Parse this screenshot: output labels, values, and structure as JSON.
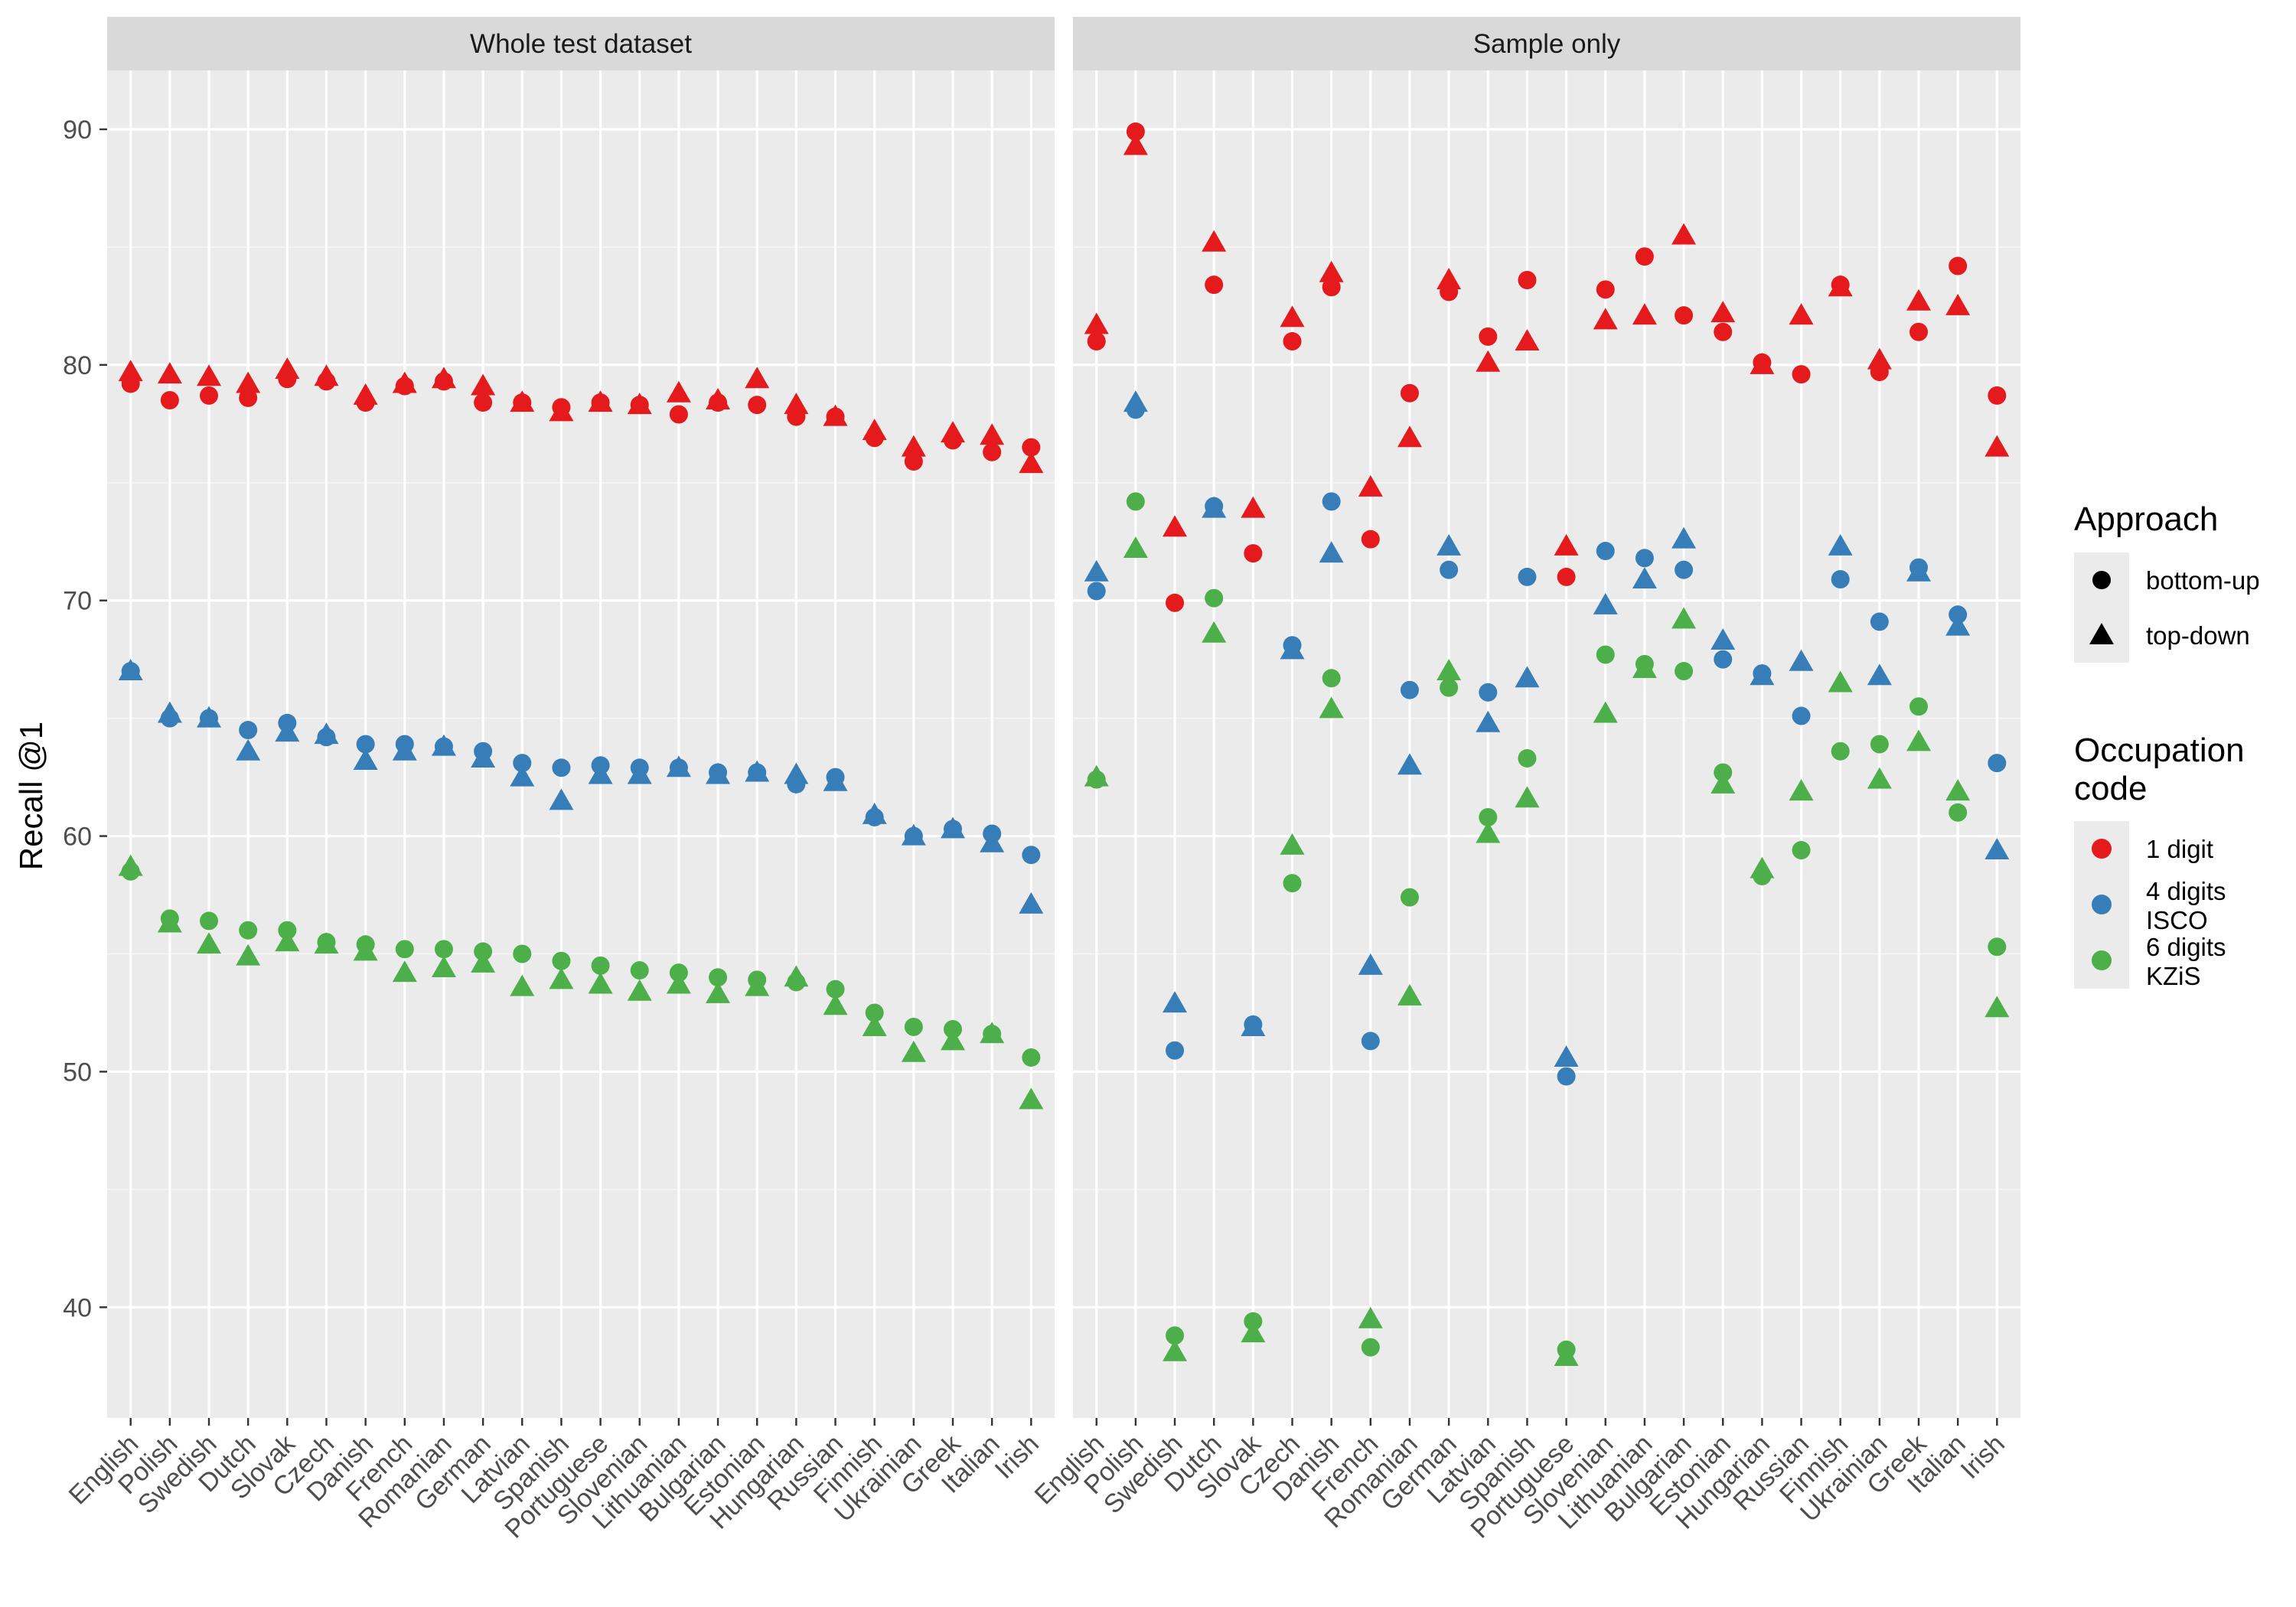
{
  "chart_data": {
    "type": "scatter",
    "ylabel": "Recall @1",
    "ylim": [
      35.3,
      92.5
    ],
    "yticks": [
      40,
      50,
      60,
      70,
      80,
      90
    ],
    "grid": true,
    "legend_position": "right",
    "colors": {
      "1 digit": "#e41a1c",
      "4 digits ISCO": "#377eb8",
      "6 digits KZiS": "#4daf4a"
    },
    "legend": {
      "approach": {
        "title": "Approach",
        "items": [
          "bottom-up",
          "top-down"
        ]
      },
      "occupation": {
        "title": [
          "Occupation",
          "code"
        ],
        "items": [
          [
            "1 digit"
          ],
          [
            "4 digits",
            "ISCO"
          ],
          [
            "6 digits",
            "KZiS"
          ]
        ]
      }
    },
    "panels": [
      {
        "title": "Whole test dataset",
        "categories": [
          "English",
          "Polish",
          "Swedish",
          "Dutch",
          "Slovak",
          "Czech",
          "Danish",
          "French",
          "Romanian",
          "German",
          "Latvian",
          "Spanish",
          "Portuguese",
          "Slovenian",
          "Lithuanian",
          "Bulgarian",
          "Estonian",
          "Hungarian",
          "Russian",
          "Finnish",
          "Ukrainian",
          "Greek",
          "Italian",
          "Irish"
        ],
        "series": [
          {
            "name": "bottom-up 1 digit",
            "approach": "bottom-up",
            "code": "1 digit",
            "values": [
              79.2,
              78.5,
              78.7,
              78.6,
              79.4,
              79.3,
              78.4,
              79.1,
              79.3,
              78.4,
              78.4,
              78.2,
              78.4,
              78.3,
              77.9,
              78.4,
              78.3,
              77.8,
              77.8,
              76.9,
              75.9,
              76.8,
              76.3,
              76.5
            ]
          },
          {
            "name": "top-down 1 digit",
            "approach": "top-down",
            "code": "1 digit",
            "values": [
              79.7,
              79.6,
              79.5,
              79.2,
              79.8,
              79.5,
              78.7,
              79.2,
              79.4,
              79.1,
              78.4,
              78.0,
              78.4,
              78.3,
              78.8,
              78.5,
              79.4,
              78.3,
              77.8,
              77.2,
              76.5,
              77.1,
              77.0,
              75.8
            ]
          },
          {
            "name": "bottom-up 4 digits ISCO",
            "approach": "bottom-up",
            "code": "4 digits ISCO",
            "values": [
              67.0,
              65.0,
              65.0,
              64.5,
              64.8,
              64.2,
              63.9,
              63.9,
              63.8,
              63.6,
              63.1,
              62.9,
              63.0,
              62.9,
              62.9,
              62.7,
              62.7,
              62.2,
              62.5,
              60.8,
              60.0,
              60.3,
              60.1,
              59.2
            ]
          },
          {
            "name": "top-down 4 digits ISCO",
            "approach": "top-down",
            "code": "4 digits ISCO",
            "values": [
              67.0,
              65.2,
              65.0,
              63.6,
              64.4,
              64.3,
              63.2,
              63.6,
              63.8,
              63.3,
              62.5,
              61.5,
              62.6,
              62.6,
              62.9,
              62.6,
              62.7,
              62.6,
              62.3,
              60.9,
              60.0,
              60.3,
              59.7,
              57.1
            ]
          },
          {
            "name": "bottom-up 6 digits KZiS",
            "approach": "bottom-up",
            "code": "6 digits KZiS",
            "values": [
              58.5,
              56.5,
              56.4,
              56.0,
              56.0,
              55.5,
              55.4,
              55.2,
              55.2,
              55.1,
              55.0,
              54.7,
              54.5,
              54.3,
              54.2,
              54.0,
              53.9,
              53.8,
              53.5,
              52.5,
              51.9,
              51.8,
              51.6,
              50.6
            ]
          },
          {
            "name": "top-down 6 digits KZiS",
            "approach": "top-down",
            "code": "6 digits KZiS",
            "values": [
              58.7,
              56.3,
              55.4,
              54.9,
              55.5,
              55.4,
              55.1,
              54.2,
              54.4,
              54.6,
              53.6,
              53.9,
              53.7,
              53.4,
              53.7,
              53.3,
              53.6,
              54.0,
              52.8,
              51.9,
              50.8,
              51.3,
              51.6,
              48.8
            ]
          }
        ]
      },
      {
        "title": "Sample only",
        "categories": [
          "English",
          "Polish",
          "Swedish",
          "Dutch",
          "Slovak",
          "Czech",
          "Danish",
          "French",
          "Romanian",
          "German",
          "Latvian",
          "Spanish",
          "Portuguese",
          "Slovenian",
          "Lithuanian",
          "Bulgarian",
          "Estonian",
          "Hungarian",
          "Russian",
          "Finnish",
          "Ukrainian",
          "Greek",
          "Italian",
          "Irish"
        ],
        "series": [
          {
            "name": "bottom-up 1 digit",
            "approach": "bottom-up",
            "code": "1 digit",
            "values": [
              81.0,
              89.9,
              69.9,
              83.4,
              72.0,
              81.0,
              83.3,
              72.6,
              78.8,
              83.1,
              81.2,
              83.6,
              71.0,
              83.2,
              84.6,
              82.1,
              81.4,
              80.1,
              79.6,
              83.4,
              79.7,
              81.4,
              84.2,
              78.7
            ]
          },
          {
            "name": "top-down 1 digit",
            "approach": "top-down",
            "code": "1 digit",
            "values": [
              81.7,
              89.3,
              73.1,
              85.2,
              73.9,
              82.0,
              83.9,
              74.8,
              76.9,
              83.6,
              80.1,
              81.0,
              72.3,
              81.9,
              82.1,
              85.5,
              82.2,
              80.0,
              82.1,
              83.3,
              80.2,
              82.7,
              82.5,
              76.5
            ]
          },
          {
            "name": "bottom-up 4 digits ISCO",
            "approach": "bottom-up",
            "code": "4 digits ISCO",
            "values": [
              70.4,
              78.1,
              50.9,
              74.0,
              52.0,
              68.1,
              74.2,
              51.3,
              66.2,
              71.3,
              66.1,
              71.0,
              49.8,
              72.1,
              71.8,
              71.3,
              67.5,
              66.9,
              65.1,
              70.9,
              69.1,
              71.4,
              69.4,
              63.1
            ]
          },
          {
            "name": "top-down 4 digits ISCO",
            "approach": "top-down",
            "code": "4 digits ISCO",
            "values": [
              71.2,
              78.4,
              52.9,
              73.9,
              51.9,
              67.9,
              72.0,
              54.5,
              63.0,
              72.3,
              64.8,
              66.7,
              50.6,
              69.8,
              70.9,
              72.6,
              68.3,
              66.8,
              67.4,
              72.3,
              66.8,
              71.2,
              68.9,
              59.4
            ]
          },
          {
            "name": "bottom-up 6 digits KZiS",
            "approach": "bottom-up",
            "code": "6 digits KZiS",
            "values": [
              62.4,
              74.2,
              38.8,
              70.1,
              39.4,
              58.0,
              66.7,
              38.3,
              57.4,
              66.3,
              60.8,
              63.3,
              38.2,
              67.7,
              67.3,
              67.0,
              62.7,
              58.3,
              59.4,
              63.6,
              63.9,
              65.5,
              61.0,
              55.3
            ]
          },
          {
            "name": "top-down 6 digits KZiS",
            "approach": "top-down",
            "code": "6 digits KZiS",
            "values": [
              62.5,
              72.2,
              38.1,
              68.6,
              38.9,
              59.6,
              65.4,
              39.5,
              53.2,
              67.0,
              60.1,
              61.6,
              37.9,
              65.2,
              67.1,
              69.2,
              62.2,
              58.6,
              61.9,
              66.5,
              62.4,
              64.0,
              61.9,
              52.7
            ]
          }
        ]
      }
    ]
  }
}
